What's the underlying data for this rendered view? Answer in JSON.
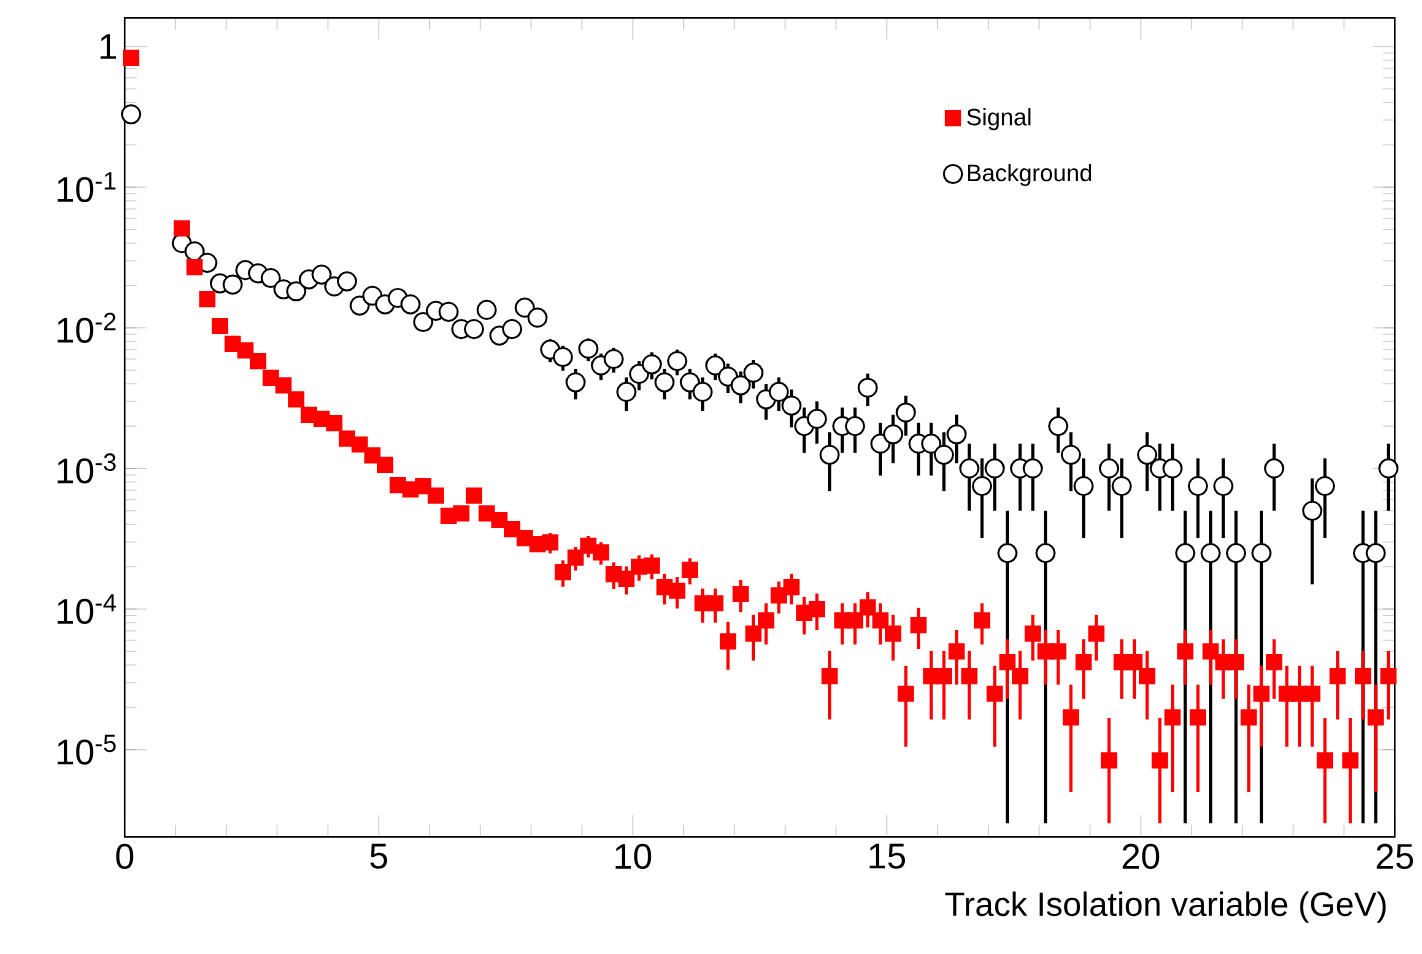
{
  "chart_data": {
    "type": "scatter",
    "xlabel": "Track Isolation variable (GeV)",
    "x": [
      0.125,
      0.375,
      0.625,
      0.875,
      1.125,
      1.375,
      1.625,
      1.875,
      2.125,
      2.375,
      2.625,
      2.875,
      3.125,
      3.375,
      3.625,
      3.875,
      4.125,
      4.375,
      4.625,
      4.875,
      5.125,
      5.375,
      5.625,
      5.875,
      6.125,
      6.375,
      6.625,
      6.875,
      7.125,
      7.375,
      7.625,
      7.875,
      8.125,
      8.375,
      8.625,
      8.875,
      9.125,
      9.375,
      9.625,
      9.875,
      10.125,
      10.375,
      10.625,
      10.875,
      11.125,
      11.375,
      11.625,
      11.875,
      12.125,
      12.375,
      12.625,
      12.875,
      13.125,
      13.375,
      13.625,
      13.875,
      14.125,
      14.375,
      14.625,
      14.875,
      15.125,
      15.375,
      15.625,
      15.875,
      16.125,
      16.375,
      16.625,
      16.875,
      17.125,
      17.375,
      17.625,
      17.875,
      18.125,
      18.375,
      18.625,
      18.875,
      19.125,
      19.375,
      19.625,
      19.875,
      20.125,
      20.375,
      20.625,
      20.875,
      21.125,
      21.375,
      21.625,
      21.875,
      22.125,
      22.375,
      22.625,
      22.875,
      23.125,
      23.375,
      23.625,
      23.875,
      24.125,
      24.375,
      24.625,
      24.875
    ],
    "series": [
      {
        "name": "Signal",
        "color": "#ff0000",
        "marker": "square",
        "values": [
          0.83,
          null,
          null,
          null,
          0.051,
          0.027,
          0.016,
          0.0103,
          0.0077,
          0.0069,
          0.0058,
          0.0044,
          0.0039,
          0.0031,
          0.0024,
          0.00225,
          0.0021,
          0.00163,
          0.00148,
          0.00124,
          0.00106,
          0.00076,
          0.00071,
          0.00075,
          0.00064,
          0.00046,
          0.00048,
          0.00064,
          0.00048,
          0.00043,
          0.00037,
          0.00032,
          0.00029,
          0.000298,
          0.000183,
          0.000232,
          0.000282,
          0.000253,
          0.000177,
          0.000164,
          0.0002,
          0.000204,
          0.000143,
          0.000135,
          0.00019,
          0.00011,
          0.00011,
          5.9e-05,
          0.000128,
          6.7e-05,
          8.3e-05,
          0.000125,
          0.000143,
          9.4e-05,
          0.0001,
          3.34e-05,
          8.3e-05,
          8.3e-05,
          0.000103,
          8.3e-05,
          6.7e-05,
          2.5e-05,
          7.7e-05,
          3.34e-05,
          3.34e-05,
          5e-05,
          3.34e-05,
          8.3e-05,
          2.5e-05,
          4.2e-05,
          3.34e-05,
          6.7e-05,
          5e-05,
          5e-05,
          1.7e-05,
          4.2e-05,
          6.7e-05,
          8.4e-06,
          4.2e-05,
          4.2e-05,
          3.34e-05,
          8.4e-06,
          1.7e-05,
          5e-05,
          1.7e-05,
          5e-05,
          4.2e-05,
          4.2e-05,
          1.7e-05,
          2.5e-05,
          4.2e-05,
          2.5e-05,
          2.5e-05,
          2.5e-05,
          8.4e-06,
          3.34e-05,
          8.4e-06,
          3.34e-05,
          1.7e-05,
          3.34e-05
        ],
        "errors": [
          null,
          null,
          null,
          null,
          null,
          null,
          null,
          null,
          null,
          null,
          null,
          null,
          null,
          null,
          null,
          null,
          null,
          null,
          null,
          null,
          null,
          null,
          null,
          null,
          null,
          null,
          null,
          null,
          null,
          null,
          null,
          null,
          null,
          4.9e-05,
          3.9e-05,
          4.4e-05,
          4.9e-05,
          4.6e-05,
          3.8e-05,
          3.7e-05,
          4.1e-05,
          4.1e-05,
          3.5e-05,
          3.4e-05,
          4e-05,
          3e-05,
          3e-05,
          2.2e-05,
          3.3e-05,
          2.4e-05,
          2.7e-05,
          3.2e-05,
          3.5e-05,
          2.8e-05,
          2.9e-05,
          1.7e-05,
          2.7e-05,
          2.7e-05,
          2.9e-05,
          2.7e-05,
          2.4e-05,
          1.45e-05,
          2.5e-05,
          1.7e-05,
          1.7e-05,
          2.1e-05,
          1.7e-05,
          2.7e-05,
          1.45e-05,
          1.9e-05,
          1.7e-05,
          2.4e-05,
          2.1e-05,
          2.1e-05,
          1.2e-05,
          1.9e-05,
          2.4e-05,
          [
            3e-06,
            1.68e-05
          ],
          1.9e-05,
          1.9e-05,
          1.7e-05,
          [
            3e-06,
            1.68e-05
          ],
          1.2e-05,
          2.1e-05,
          1.2e-05,
          2.1e-05,
          1.9e-05,
          1.9e-05,
          1.2e-05,
          1.45e-05,
          1.9e-05,
          1.45e-05,
          1.45e-05,
          1.45e-05,
          [
            3e-06,
            1.68e-05
          ],
          1.7e-05,
          [
            3e-06,
            1.68e-05
          ],
          1.7e-05,
          1.2e-05,
          1.7e-05
        ]
      },
      {
        "name": "Background",
        "color": "#000000",
        "marker": "circle",
        "values": [
          0.33,
          null,
          null,
          null,
          0.04,
          0.035,
          0.029,
          0.0207,
          0.0203,
          0.0257,
          0.0244,
          0.0226,
          0.0188,
          0.0182,
          0.0221,
          0.0239,
          0.0197,
          0.0214,
          0.0144,
          0.0169,
          0.0147,
          0.0163,
          0.0147,
          0.011,
          0.0132,
          0.013,
          0.0098,
          0.0098,
          0.0134,
          0.0088,
          0.0098,
          0.0139,
          0.0118,
          0.007,
          0.0062,
          0.0041,
          0.0071,
          0.0054,
          0.006,
          0.0035,
          0.0047,
          0.0055,
          0.0041,
          0.0058,
          0.0041,
          0.0035,
          0.0054,
          0.0045,
          0.0039,
          0.0048,
          0.0031,
          0.0035,
          0.0028,
          0.002,
          0.00225,
          0.00125,
          0.002,
          0.002,
          0.00375,
          0.0015,
          0.00175,
          0.0025,
          0.0015,
          0.0015,
          0.00125,
          0.00175,
          0.001,
          0.00075,
          0.001,
          0.00025,
          0.001,
          0.001,
          0.00025,
          0.002,
          0.00125,
          0.00075,
          null,
          0.001,
          0.00075,
          null,
          0.00125,
          0.001,
          0.001,
          0.00025,
          0.00075,
          0.00025,
          0.00075,
          0.00025,
          null,
          0.00025,
          0.001,
          null,
          null,
          0.0005,
          0.00075,
          null,
          null,
          0.00025,
          0.00025,
          0.001
        ],
        "errors": [
          null,
          null,
          null,
          null,
          null,
          null,
          null,
          null,
          null,
          null,
          null,
          null,
          null,
          null,
          null,
          null,
          null,
          null,
          null,
          null,
          null,
          null,
          null,
          null,
          null,
          null,
          null,
          null,
          null,
          null,
          null,
          null,
          null,
          0.0013,
          0.00125,
          0.001,
          0.0013,
          0.00115,
          0.0012,
          0.00094,
          0.0011,
          0.0012,
          0.001,
          0.0012,
          0.001,
          0.00094,
          0.00115,
          0.00106,
          0.00099,
          0.0011,
          0.00088,
          0.00094,
          0.00084,
          0.00071,
          0.00075,
          0.00056,
          0.00071,
          0.00071,
          0.00097,
          0.00061,
          0.00066,
          0.00079,
          0.00061,
          0.00061,
          0.00056,
          0.00066,
          0.0005,
          0.00043,
          0.0005,
          [
            3e-06,
            0.0005
          ],
          0.0005,
          0.0005,
          [
            3e-06,
            0.0005
          ],
          0.00071,
          0.00056,
          0.00043,
          null,
          0.0005,
          0.00043,
          null,
          0.00056,
          0.0005,
          0.0005,
          [
            3e-06,
            0.0005
          ],
          0.00043,
          [
            3e-06,
            0.0005
          ],
          0.00043,
          [
            3e-06,
            0.0005
          ],
          null,
          [
            3e-06,
            0.0005
          ],
          0.0005,
          null,
          null,
          0.00035,
          0.00043,
          null,
          null,
          [
            3e-06,
            0.0005
          ],
          [
            3e-06,
            0.0005
          ],
          0.0005
        ]
      }
    ],
    "xlim": [
      0,
      25
    ],
    "xticks": [
      0,
      5,
      10,
      15,
      20,
      25
    ],
    "ylim": [
      2.4e-06,
      1.6
    ],
    "log": "y",
    "yticks": [
      {
        "value": 1e-05,
        "label": "10$^{-5}$"
      },
      {
        "value": 0.0001,
        "label": "10$^{-4}$"
      },
      {
        "value": 0.001,
        "label": "10$^{-3}$"
      },
      {
        "value": 0.01,
        "label": "10$^{-2}$"
      },
      {
        "value": 0.1,
        "label": "10$^{-1}$"
      },
      1
    ],
    "legend": "top right"
  }
}
